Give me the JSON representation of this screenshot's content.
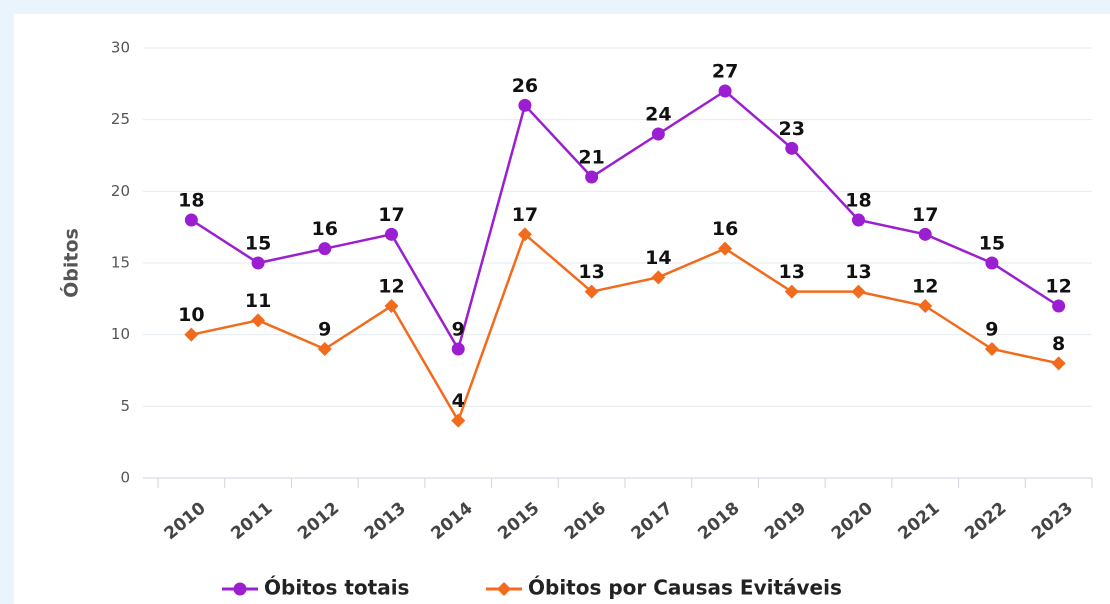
{
  "chart_data": {
    "type": "line",
    "y_label": "Óbitos",
    "categories": [
      "2010",
      "2011",
      "2012",
      "2013",
      "2014",
      "2015",
      "2016",
      "2017",
      "2018",
      "2019",
      "2020",
      "2021",
      "2022",
      "2023"
    ],
    "series": [
      {
        "name": "Óbitos totais",
        "color": "#9b1fd1",
        "marker": "circle",
        "values": [
          18,
          15,
          16,
          17,
          9,
          26,
          21,
          24,
          27,
          23,
          18,
          17,
          15,
          12
        ]
      },
      {
        "name": "Óbitos por Causas Evitáveis",
        "color": "#f26b1d",
        "marker": "diamond",
        "values": [
          10,
          11,
          9,
          12,
          4,
          17,
          13,
          14,
          16,
          13,
          13,
          12,
          9,
          8
        ]
      }
    ],
    "ylim": [
      0,
      30
    ],
    "yticks": [
      0,
      5,
      10,
      15,
      20,
      25,
      30
    ],
    "grid": true,
    "legend": "bottom"
  }
}
